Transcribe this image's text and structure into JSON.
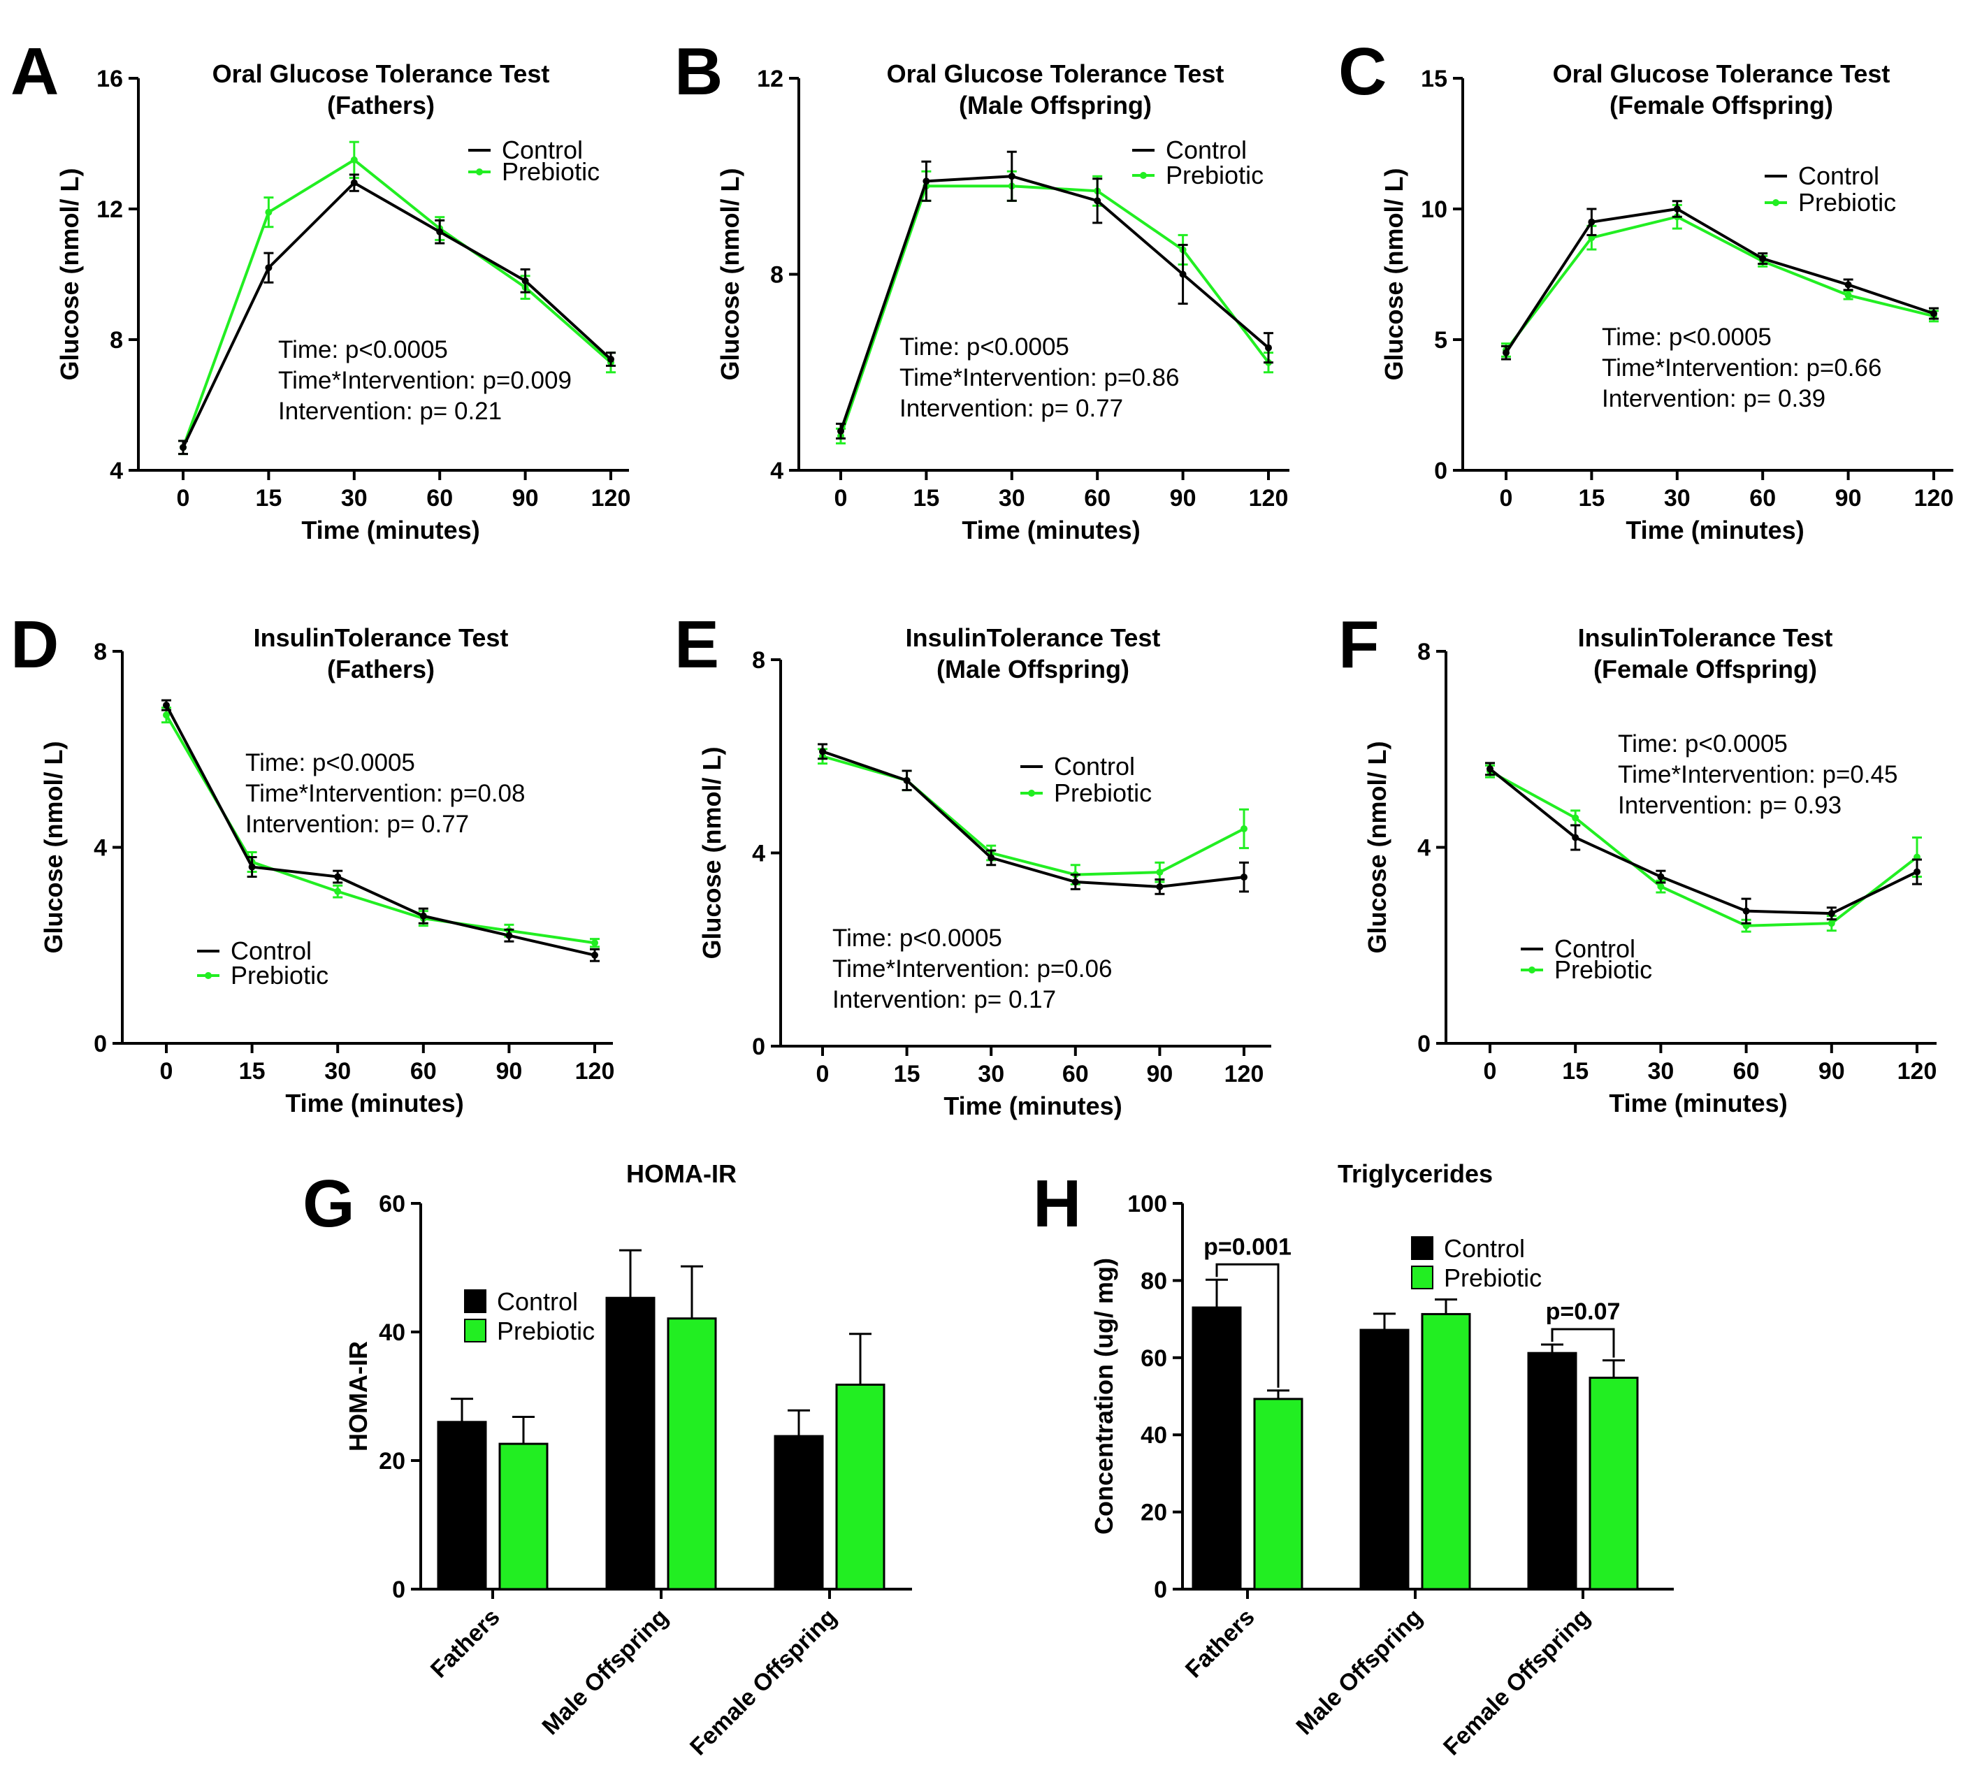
{
  "colors": {
    "control": "#000000",
    "prebiotic": "#22ee22"
  },
  "chart_data": [
    {
      "panel": "A",
      "type": "line",
      "title": [
        "Oral Glucose Tolerance Test",
        "(Fathers)"
      ],
      "xlabel": "Time (minutes)",
      "ylabel": "Glucose (nmol/ L)",
      "categories": [
        "0",
        "15",
        "30",
        "60",
        "90",
        "120"
      ],
      "ylim": [
        4,
        16
      ],
      "yticks": [
        4,
        8,
        12,
        16
      ],
      "grid": false,
      "legend_position": "top-right",
      "series": [
        {
          "name": "Control",
          "values": [
            4.7,
            10.2,
            12.8,
            11.3,
            9.8,
            7.4
          ],
          "errors": [
            0.2,
            0.45,
            0.25,
            0.35,
            0.35,
            0.2
          ]
        },
        {
          "name": "Prebiotic",
          "values": [
            4.7,
            11.9,
            13.5,
            11.4,
            9.6,
            7.3
          ],
          "errors": [
            0.2,
            0.45,
            0.55,
            0.35,
            0.35,
            0.3
          ]
        }
      ],
      "stats": [
        "Time: p<0.0005",
        "Time*Intervention: p=0.009",
        "Intervention: p= 0.21"
      ]
    },
    {
      "panel": "B",
      "type": "line",
      "title": [
        "Oral Glucose Tolerance Test",
        "(Male Offspring)"
      ],
      "xlabel": "Time (minutes)",
      "ylabel": "Glucose (nmol/ L)",
      "categories": [
        "0",
        "15",
        "30",
        "60",
        "90",
        "120"
      ],
      "ylim": [
        4,
        12
      ],
      "yticks": [
        4,
        8,
        12
      ],
      "grid": false,
      "legend_position": "top-right",
      "series": [
        {
          "name": "Control",
          "values": [
            4.8,
            9.9,
            10.0,
            9.5,
            8.0,
            6.5
          ],
          "errors": [
            0.15,
            0.4,
            0.5,
            0.45,
            0.6,
            0.3
          ]
        },
        {
          "name": "Prebiotic",
          "values": [
            4.7,
            9.8,
            9.8,
            9.7,
            8.5,
            6.2
          ],
          "errors": [
            0.15,
            0.3,
            0.3,
            0.3,
            0.3,
            0.2
          ]
        }
      ],
      "stats": [
        "Time: p<0.0005",
        "Time*Intervention: p=0.86",
        "Intervention: p= 0.77"
      ]
    },
    {
      "panel": "C",
      "type": "line",
      "title": [
        "Oral Glucose Tolerance Test",
        "(Female Offspring)"
      ],
      "xlabel": "Time (minutes)",
      "ylabel": "Glucose (nmol/ L)",
      "categories": [
        "0",
        "15",
        "30",
        "60",
        "90",
        "120"
      ],
      "ylim": [
        0,
        15
      ],
      "yticks": [
        0,
        5,
        10,
        15
      ],
      "grid": false,
      "legend_position": "top-right",
      "series": [
        {
          "name": "Control",
          "values": [
            4.5,
            9.5,
            10.0,
            8.1,
            7.1,
            6.0
          ],
          "errors": [
            0.25,
            0.5,
            0.3,
            0.2,
            0.2,
            0.2
          ]
        },
        {
          "name": "Prebiotic",
          "values": [
            4.6,
            8.9,
            9.7,
            8.0,
            6.7,
            5.9
          ],
          "errors": [
            0.25,
            0.45,
            0.45,
            0.2,
            0.15,
            0.2
          ]
        }
      ],
      "stats": [
        "Time: p<0.0005",
        "Time*Intervention: p=0.66",
        "Intervention: p= 0.39"
      ]
    },
    {
      "panel": "D",
      "type": "line",
      "title": [
        "InsulinTolerance Test",
        "(Fathers)"
      ],
      "xlabel": "Time (minutes)",
      "ylabel": "Glucose (nmol/ L)",
      "categories": [
        "0",
        "15",
        "30",
        "60",
        "90",
        "120"
      ],
      "ylim": [
        0,
        8
      ],
      "yticks": [
        0,
        4,
        8
      ],
      "grid": false,
      "legend_position": "bottom-left",
      "series": [
        {
          "name": "Control",
          "values": [
            6.9,
            3.6,
            3.4,
            2.6,
            2.2,
            1.8
          ],
          "errors": [
            0.1,
            0.2,
            0.12,
            0.15,
            0.12,
            0.12
          ]
        },
        {
          "name": "Prebiotic",
          "values": [
            6.7,
            3.7,
            3.1,
            2.55,
            2.3,
            2.05
          ],
          "errors": [
            0.15,
            0.2,
            0.12,
            0.15,
            0.12,
            0.08
          ]
        }
      ],
      "stats": [
        "Time: p<0.0005",
        "Time*Intervention: p=0.08",
        "Intervention: p= 0.77"
      ]
    },
    {
      "panel": "E",
      "type": "line",
      "title": [
        "InsulinTolerance Test",
        "(Male Offspring)"
      ],
      "xlabel": "Time (minutes)",
      "ylabel": "Glucose (nmol/ L)",
      "categories": [
        "0",
        "15",
        "30",
        "60",
        "90",
        "120"
      ],
      "ylim": [
        0,
        8
      ],
      "yticks": [
        0,
        4,
        8
      ],
      "grid": false,
      "legend_position": "top-right",
      "series": [
        {
          "name": "Control",
          "values": [
            6.1,
            5.5,
            3.9,
            3.4,
            3.3,
            3.5
          ],
          "errors": [
            0.15,
            0.2,
            0.15,
            0.15,
            0.15,
            0.3
          ]
        },
        {
          "name": "Prebiotic",
          "values": [
            6.0,
            5.5,
            4.0,
            3.55,
            3.6,
            4.5
          ],
          "errors": [
            0.15,
            0.2,
            0.15,
            0.2,
            0.2,
            0.4
          ]
        }
      ],
      "stats": [
        "Time: p<0.0005",
        "Time*Intervention: p=0.06",
        "Intervention: p= 0.17"
      ]
    },
    {
      "panel": "F",
      "type": "line",
      "title": [
        "InsulinTolerance Test",
        "(Female Offspring)"
      ],
      "xlabel": "Time (minutes)",
      "ylabel": "Glucose (nmol/ L)",
      "categories": [
        "0",
        "15",
        "30",
        "60",
        "90",
        "120"
      ],
      "ylim": [
        0,
        8
      ],
      "yticks": [
        0,
        4,
        8
      ],
      "grid": false,
      "legend_position": "bottom-left",
      "series": [
        {
          "name": "Control",
          "values": [
            5.6,
            4.2,
            3.4,
            2.7,
            2.65,
            3.5
          ],
          "errors": [
            0.12,
            0.25,
            0.12,
            0.25,
            0.12,
            0.25
          ]
        },
        {
          "name": "Prebiotic",
          "values": [
            5.55,
            4.6,
            3.2,
            2.4,
            2.45,
            3.8
          ],
          "errors": [
            0.12,
            0.15,
            0.12,
            0.12,
            0.15,
            0.4
          ]
        }
      ],
      "stats": [
        "Time: p<0.0005",
        "Time*Intervention: p=0.45",
        "Intervention: p= 0.93"
      ]
    },
    {
      "panel": "G",
      "type": "bar",
      "title": [
        "HOMA-IR"
      ],
      "xlabel": "",
      "ylabel": "HOMA-IR",
      "categories": [
        "Fathers",
        "Male Offspring",
        "Female Offspring"
      ],
      "ylim": [
        0,
        60
      ],
      "yticks": [
        0,
        20,
        40,
        60
      ],
      "grid": false,
      "legend_position": "upper-left",
      "series": [
        {
          "name": "Control",
          "values": [
            26,
            45.3,
            23.8
          ],
          "errors": [
            3.6,
            7.4,
            4
          ]
        },
        {
          "name": "Prebiotic",
          "values": [
            22.6,
            42.1,
            31.8
          ],
          "errors": [
            4.2,
            8.1,
            7.9
          ]
        }
      ],
      "annotations": []
    },
    {
      "panel": "H",
      "type": "bar",
      "title": [
        "Triglycerides"
      ],
      "xlabel": "",
      "ylabel": "Concentration (ug/ mg)",
      "categories": [
        "Fathers",
        "Male Offspring",
        "Female Offspring"
      ],
      "ylim": [
        0,
        100
      ],
      "yticks": [
        0,
        20,
        40,
        60,
        80,
        100
      ],
      "grid": false,
      "legend_position": "top-center",
      "series": [
        {
          "name": "Control",
          "values": [
            73,
            67.2,
            61.2
          ],
          "errors": [
            7.2,
            4.2,
            2.2
          ]
        },
        {
          "name": "Prebiotic",
          "values": [
            49.3,
            71.3,
            54.8
          ],
          "errors": [
            2.2,
            3.8,
            4.5
          ]
        }
      ],
      "annotations": [
        {
          "category": "Fathers",
          "label": "p=0.001"
        },
        {
          "category": "Female Offspring",
          "label": "p=0.07"
        }
      ]
    }
  ]
}
